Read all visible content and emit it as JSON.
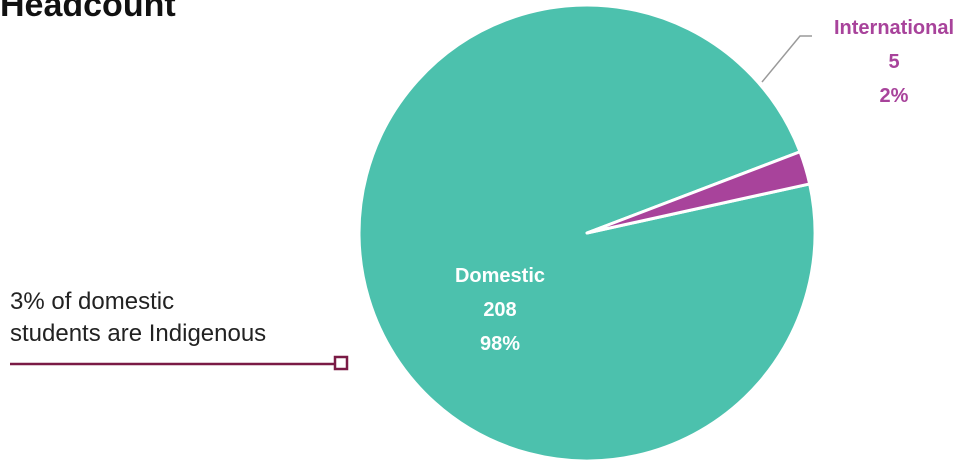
{
  "title": "Headcount",
  "annotation": {
    "line1": "3% of domestic",
    "line2": "students are Indigenous"
  },
  "colors": {
    "domestic": "#4cc1ad",
    "international": "#a8439b",
    "annotation_accent": "#7a1a45",
    "leader_line": "#9a9a9a",
    "text": "#222222"
  },
  "chart_data": {
    "type": "pie",
    "title": "Headcount",
    "slices": [
      {
        "label": "Domestic",
        "value": 208,
        "percent_label": "98%"
      },
      {
        "label": "International",
        "value": 5,
        "percent_label": "2%"
      }
    ]
  }
}
